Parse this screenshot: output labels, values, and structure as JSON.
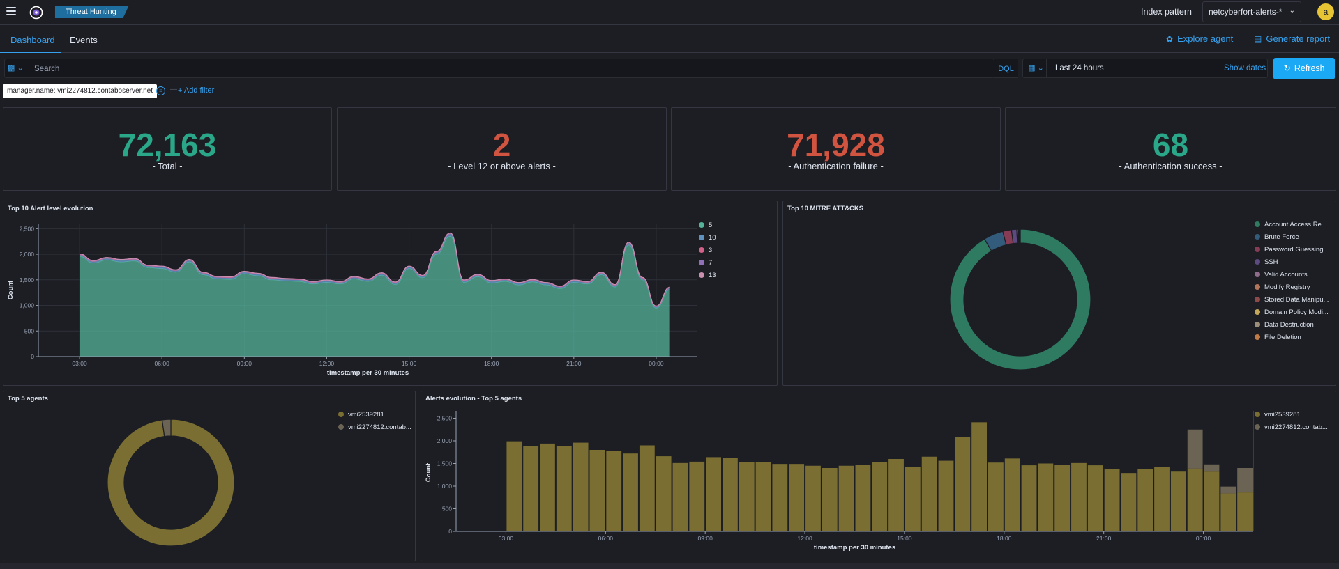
{
  "header": {
    "app_badge": "Threat Hunting",
    "index_pattern_label": "Index pattern",
    "index_pattern_value": "netcyberfort-alerts-*",
    "avatar_letter": "a"
  },
  "tabs": [
    {
      "label": "Dashboard",
      "active": true
    },
    {
      "label": "Events",
      "active": false
    }
  ],
  "actions": {
    "explore_agent": "Explore agent",
    "generate_report": "Generate report"
  },
  "search": {
    "placeholder": "Search",
    "dql": "DQL",
    "date_range": "Last 24 hours",
    "show_dates": "Show dates",
    "refresh": "Refresh"
  },
  "filters": {
    "pill": "manager.name: vmi2274812.contaboserver.net",
    "add_filter": "+ Add filter"
  },
  "metrics": [
    {
      "value": "72,163",
      "label": "- Total -",
      "color": "#2aa688"
    },
    {
      "value": "2",
      "label": "- Level 12 or above alerts -",
      "color": "#d0543f"
    },
    {
      "value": "71,928",
      "label": "- Authentication failure -",
      "color": "#d0543f"
    },
    {
      "value": "68",
      "label": "- Authentication success -",
      "color": "#2aa688"
    }
  ],
  "charts": {
    "alert_level": {
      "title": "Top 10 Alert level evolution"
    },
    "mitre": {
      "title": "Top 10 MITRE ATT&CKS"
    },
    "top_agents": {
      "title": "Top 5 agents"
    },
    "agents_evolution": {
      "title": "Alerts evolution - Top 5 agents"
    }
  },
  "chart_data": [
    {
      "type": "area",
      "title": "Top 10 Alert level evolution",
      "xlabel": "timestamp per 30 minutes",
      "ylabel": "Count",
      "ylim": [
        0,
        2600
      ],
      "yticks": [
        "0",
        "500",
        "1,000",
        "1,500",
        "2,000",
        "2,500"
      ],
      "xticks": [
        "03:00",
        "06:00",
        "09:00",
        "12:00",
        "15:00",
        "18:00",
        "21:00",
        "00:00"
      ],
      "x_start": "01:30",
      "x_end": "01:30",
      "legend": "right",
      "series": [
        {
          "name": "5",
          "color": "#54b399",
          "values": [
            1960,
            1830,
            1890,
            1850,
            1870,
            1740,
            1720,
            1650,
            1850,
            1600,
            1520,
            1510,
            1620,
            1580,
            1500,
            1480,
            1470,
            1420,
            1450,
            1420,
            1520,
            1470,
            1590,
            1410,
            1720,
            1540,
            2000,
            2350,
            1450,
            1560,
            1440,
            1470,
            1400,
            1460,
            1400,
            1330,
            1450,
            1420,
            1600,
            1360,
            2180,
            1500,
            950,
            1310
          ]
        },
        {
          "name": "10",
          "color": "#6092c0",
          "values": [
            30,
            30,
            30,
            30,
            30,
            30,
            30,
            30,
            30,
            30,
            30,
            30,
            30,
            30,
            30,
            30,
            30,
            30,
            30,
            30,
            30,
            30,
            30,
            30,
            30,
            30,
            40,
            50,
            30,
            30,
            30,
            30,
            30,
            30,
            30,
            30,
            30,
            30,
            30,
            30,
            40,
            30,
            20,
            30
          ]
        },
        {
          "name": "3",
          "color": "#d36086",
          "values": [
            5,
            5,
            5,
            5,
            5,
            5,
            5,
            5,
            5,
            5,
            5,
            5,
            5,
            5,
            5,
            5,
            5,
            5,
            5,
            5,
            5,
            5,
            5,
            5,
            5,
            5,
            5,
            5,
            5,
            5,
            5,
            5,
            5,
            5,
            5,
            5,
            5,
            5,
            5,
            5,
            5,
            5,
            5,
            5
          ]
        },
        {
          "name": "7",
          "color": "#9170b8",
          "values": [
            10,
            10,
            10,
            10,
            10,
            10,
            10,
            10,
            10,
            10,
            10,
            10,
            10,
            10,
            10,
            10,
            10,
            10,
            10,
            10,
            10,
            10,
            10,
            10,
            10,
            10,
            10,
            10,
            10,
            10,
            10,
            10,
            10,
            10,
            10,
            10,
            10,
            10,
            10,
            10,
            10,
            10,
            10,
            10
          ]
        },
        {
          "name": "13",
          "color": "#ca8eae",
          "values": [
            2,
            2,
            2,
            2,
            2,
            2,
            2,
            2,
            2,
            2,
            2,
            2,
            2,
            2,
            2,
            2,
            2,
            2,
            2,
            2,
            2,
            2,
            2,
            2,
            2,
            2,
            2,
            2,
            2,
            2,
            2,
            2,
            2,
            2,
            2,
            2,
            2,
            2,
            2,
            2,
            2,
            2,
            2,
            2
          ]
        }
      ]
    },
    {
      "type": "pie",
      "title": "Top 10 MITRE ATT&CKS",
      "legend": "right",
      "slices": [
        {
          "name": "Account Access Re...",
          "value": 91.5,
          "color": "#2e7b62"
        },
        {
          "name": "Brute Force",
          "value": 4.5,
          "color": "#335c7c"
        },
        {
          "name": "Password Guessing",
          "value": 2.0,
          "color": "#873c56"
        },
        {
          "name": "SSH",
          "value": 1.2,
          "color": "#5c4a80"
        },
        {
          "name": "Valid Accounts",
          "value": 0.3,
          "color": "#8f6b8c"
        },
        {
          "name": "Modify Registry",
          "value": 0.15,
          "color": "#b3755a"
        },
        {
          "name": "Stored Data Manipu...",
          "value": 0.12,
          "color": "#8c4a4a"
        },
        {
          "name": "Domain Policy Modi...",
          "value": 0.1,
          "color": "#c4a85a"
        },
        {
          "name": "Data Destruction",
          "value": 0.08,
          "color": "#9c8f7a"
        },
        {
          "name": "File Deletion",
          "value": 0.05,
          "color": "#c27a45"
        }
      ]
    },
    {
      "type": "pie",
      "title": "Top 5 agents",
      "legend": "right",
      "slices": [
        {
          "name": "vmi2539281",
          "value": 97.8,
          "color": "#7a6e32"
        },
        {
          "name": "vmi2274812.contab...",
          "value": 2.2,
          "color": "#6b6354"
        }
      ]
    },
    {
      "type": "bar",
      "title": "Alerts evolution - Top 5 agents",
      "xlabel": "timestamp per 30 minutes",
      "ylabel": "Count",
      "ylim": [
        0,
        2600
      ],
      "yticks": [
        "0",
        "500",
        "1,000",
        "1,500",
        "2,000",
        "2,500"
      ],
      "xticks": [
        "03:00",
        "06:00",
        "09:00",
        "12:00",
        "15:00",
        "18:00",
        "21:00",
        "00:00"
      ],
      "legend": "right",
      "stacked": true,
      "series": [
        {
          "name": "vmi2539281",
          "color": "#7a6e32",
          "values": [
            1990,
            1880,
            1940,
            1890,
            1960,
            1800,
            1770,
            1720,
            1900,
            1660,
            1510,
            1540,
            1640,
            1620,
            1530,
            1530,
            1490,
            1490,
            1450,
            1400,
            1450,
            1470,
            1530,
            1600,
            1430,
            1650,
            1560,
            2090,
            2410,
            1520,
            1610,
            1460,
            1500,
            1470,
            1510,
            1460,
            1380,
            1290,
            1370,
            1420,
            1320,
            1390,
            1320,
            840,
            860
          ]
        },
        {
          "name": "vmi2274812.contab...",
          "color": "#6b6354",
          "values": [
            0,
            0,
            0,
            0,
            0,
            0,
            0,
            0,
            0,
            0,
            0,
            0,
            0,
            0,
            0,
            0,
            0,
            0,
            0,
            0,
            0,
            0,
            0,
            0,
            0,
            0,
            0,
            0,
            0,
            0,
            0,
            0,
            0,
            0,
            0,
            0,
            0,
            0,
            0,
            0,
            0,
            860,
            160,
            150,
            540
          ]
        }
      ]
    }
  ]
}
